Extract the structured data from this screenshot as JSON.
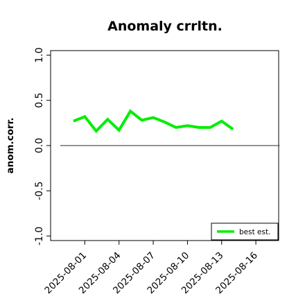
{
  "chart_data": {
    "type": "line",
    "title": "Anomaly crrltn.",
    "ylabel": "anom.corr.",
    "xlabel": "",
    "ylim": [
      -1.05,
      1.05
    ],
    "xlim": [
      "2025-07-29",
      "2025-08-18"
    ],
    "yticks": [
      -1.0,
      -0.5,
      0.0,
      0.5,
      1.0
    ],
    "ytick_labels": [
      "-1.0",
      "-0.5",
      "0.0",
      "0.5",
      "1.0"
    ],
    "xticks": [
      "2025-08-01",
      "2025-08-04",
      "2025-08-07",
      "2025-08-10",
      "2025-08-13",
      "2025-08-16"
    ],
    "xtick_labels": [
      "2025-08-01",
      "2025-08-04",
      "2025-08-07",
      "2025-08-10",
      "2025-08-13",
      "2025-08-16"
    ],
    "highlight_tick": "2025-08-07",
    "highlight_color": "#228b22",
    "reference_line": {
      "y": 0,
      "from": "2025-07-29",
      "to": "2025-08-17",
      "color": "#555555"
    },
    "x": [
      "2025-07-31",
      "2025-08-01",
      "2025-08-02",
      "2025-08-03",
      "2025-08-04",
      "2025-08-05",
      "2025-08-06",
      "2025-08-07",
      "2025-08-08",
      "2025-08-09",
      "2025-08-10",
      "2025-08-11",
      "2025-08-12",
      "2025-08-13",
      "2025-08-14"
    ],
    "series": [
      {
        "name": "best est.",
        "color": "#00ee00",
        "values": [
          0.27,
          0.32,
          0.16,
          0.29,
          0.17,
          0.38,
          0.28,
          0.31,
          0.26,
          0.2,
          0.22,
          0.2,
          0.2,
          0.27,
          0.18
        ]
      }
    ],
    "legend_position": "bottom-right",
    "grid": false
  }
}
